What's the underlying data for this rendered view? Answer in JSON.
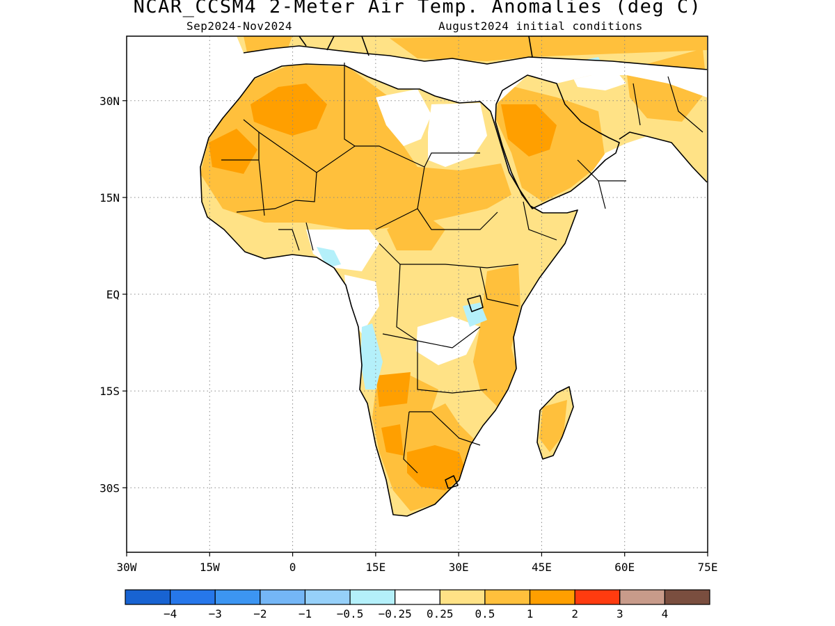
{
  "title": "NCAR_CCSM4 2-Meter Air Temp. Anomalies (deg C)",
  "subtitle_left": "Sep2024-Nov2024",
  "subtitle_right": "August2024 initial conditions",
  "axes": {
    "y_ticks": [
      "30N",
      "15N",
      "EQ",
      "15S",
      "30S"
    ],
    "x_ticks": [
      "30W",
      "15W",
      "0",
      "15E",
      "30E",
      "45E",
      "60E",
      "75E"
    ],
    "lon_range": [
      -30,
      75
    ],
    "lat_range": [
      -40,
      40
    ],
    "grid": "dotted"
  },
  "colorbar": {
    "colors": [
      "#1863d2",
      "#2677ea",
      "#3c95f2",
      "#74b6f6",
      "#96d0f9",
      "#b4f0fa",
      "#ffffff",
      "#ffe286",
      "#ffc03c",
      "#ff9f00",
      "#ff3b0f",
      "#c89b8a",
      "#7a4e3f"
    ],
    "labels": [
      "-4",
      "-3",
      "-2",
      "-1",
      "-0.5",
      "-0.25",
      "0.25",
      "0.5",
      "1",
      "2",
      "3",
      "4"
    ]
  },
  "colors": {
    "land_0_5": "#ffe286",
    "land_1": "#ffc03c",
    "land_2": "#ff9f00",
    "cool": "#b4f0fa",
    "outline": "#000000"
  }
}
